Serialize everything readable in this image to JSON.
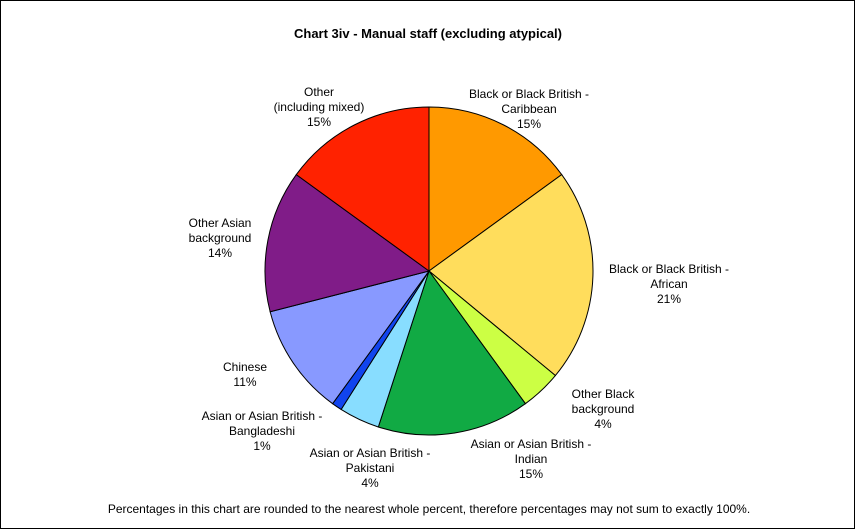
{
  "chart_data": {
    "type": "pie",
    "title": "Chart 3iv - Manual staff (excluding atypical)",
    "footnote": "Percentages in this chart are rounded to the nearest whole percent, therefore percentages may not sum to exactly 100%.",
    "slices": [
      {
        "label_lines": [
          "Black or Black British -",
          "Caribbean"
        ],
        "value": 15,
        "percent_label": "15%",
        "color": "#FF9900"
      },
      {
        "label_lines": [
          "Black or Black British -",
          "African"
        ],
        "value": 21,
        "percent_label": "21%",
        "color": "#FFDD5C"
      },
      {
        "label_lines": [
          "Other Black",
          "background"
        ],
        "value": 4,
        "percent_label": "4%",
        "color": "#CCFF44"
      },
      {
        "label_lines": [
          "Asian or Asian British -",
          "Indian"
        ],
        "value": 15,
        "percent_label": "15%",
        "color": "#11AA44"
      },
      {
        "label_lines": [
          "Asian or Asian British -",
          "Pakistani"
        ],
        "value": 4,
        "percent_label": "4%",
        "color": "#88DDFF"
      },
      {
        "label_lines": [
          "Asian or Asian British -",
          "Bangladeshi"
        ],
        "value": 1,
        "percent_label": "1%",
        "color": "#1144EE"
      },
      {
        "label_lines": [
          "Chinese"
        ],
        "value": 11,
        "percent_label": "11%",
        "color": "#8899FF"
      },
      {
        "label_lines": [
          "Other Asian",
          "background"
        ],
        "value": 14,
        "percent_label": "14%",
        "color": "#801C88"
      },
      {
        "label_lines": [
          "Other",
          "(including mixed)"
        ],
        "value": 15,
        "percent_label": "15%",
        "color": "#FF2200"
      }
    ]
  }
}
